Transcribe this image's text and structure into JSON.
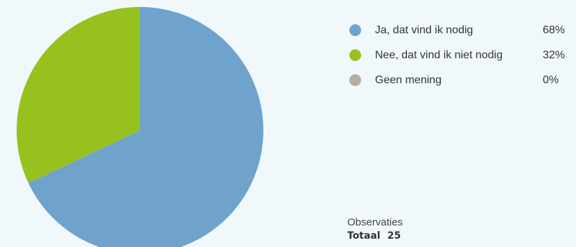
{
  "chart_data": {
    "type": "pie",
    "slices": [
      {
        "label": "Ja, dat vind ik nodig",
        "value": 68,
        "percent_label": "68%",
        "color": "#6fa3cc"
      },
      {
        "label": "Nee, dat vind ik niet nodig",
        "value": 32,
        "percent_label": "32%",
        "color": "#97c11f"
      },
      {
        "label": "Geen mening",
        "value": 0,
        "percent_label": "0%",
        "color": "#b5aea4"
      }
    ],
    "start_angle_deg": 0,
    "direction": "clockwise",
    "legend_position": "right"
  },
  "observations": {
    "label": "Observaties",
    "total_label": "Totaal",
    "total_value": "25"
  },
  "colors": {
    "background": "#f1f8fc",
    "text": "#333333"
  }
}
